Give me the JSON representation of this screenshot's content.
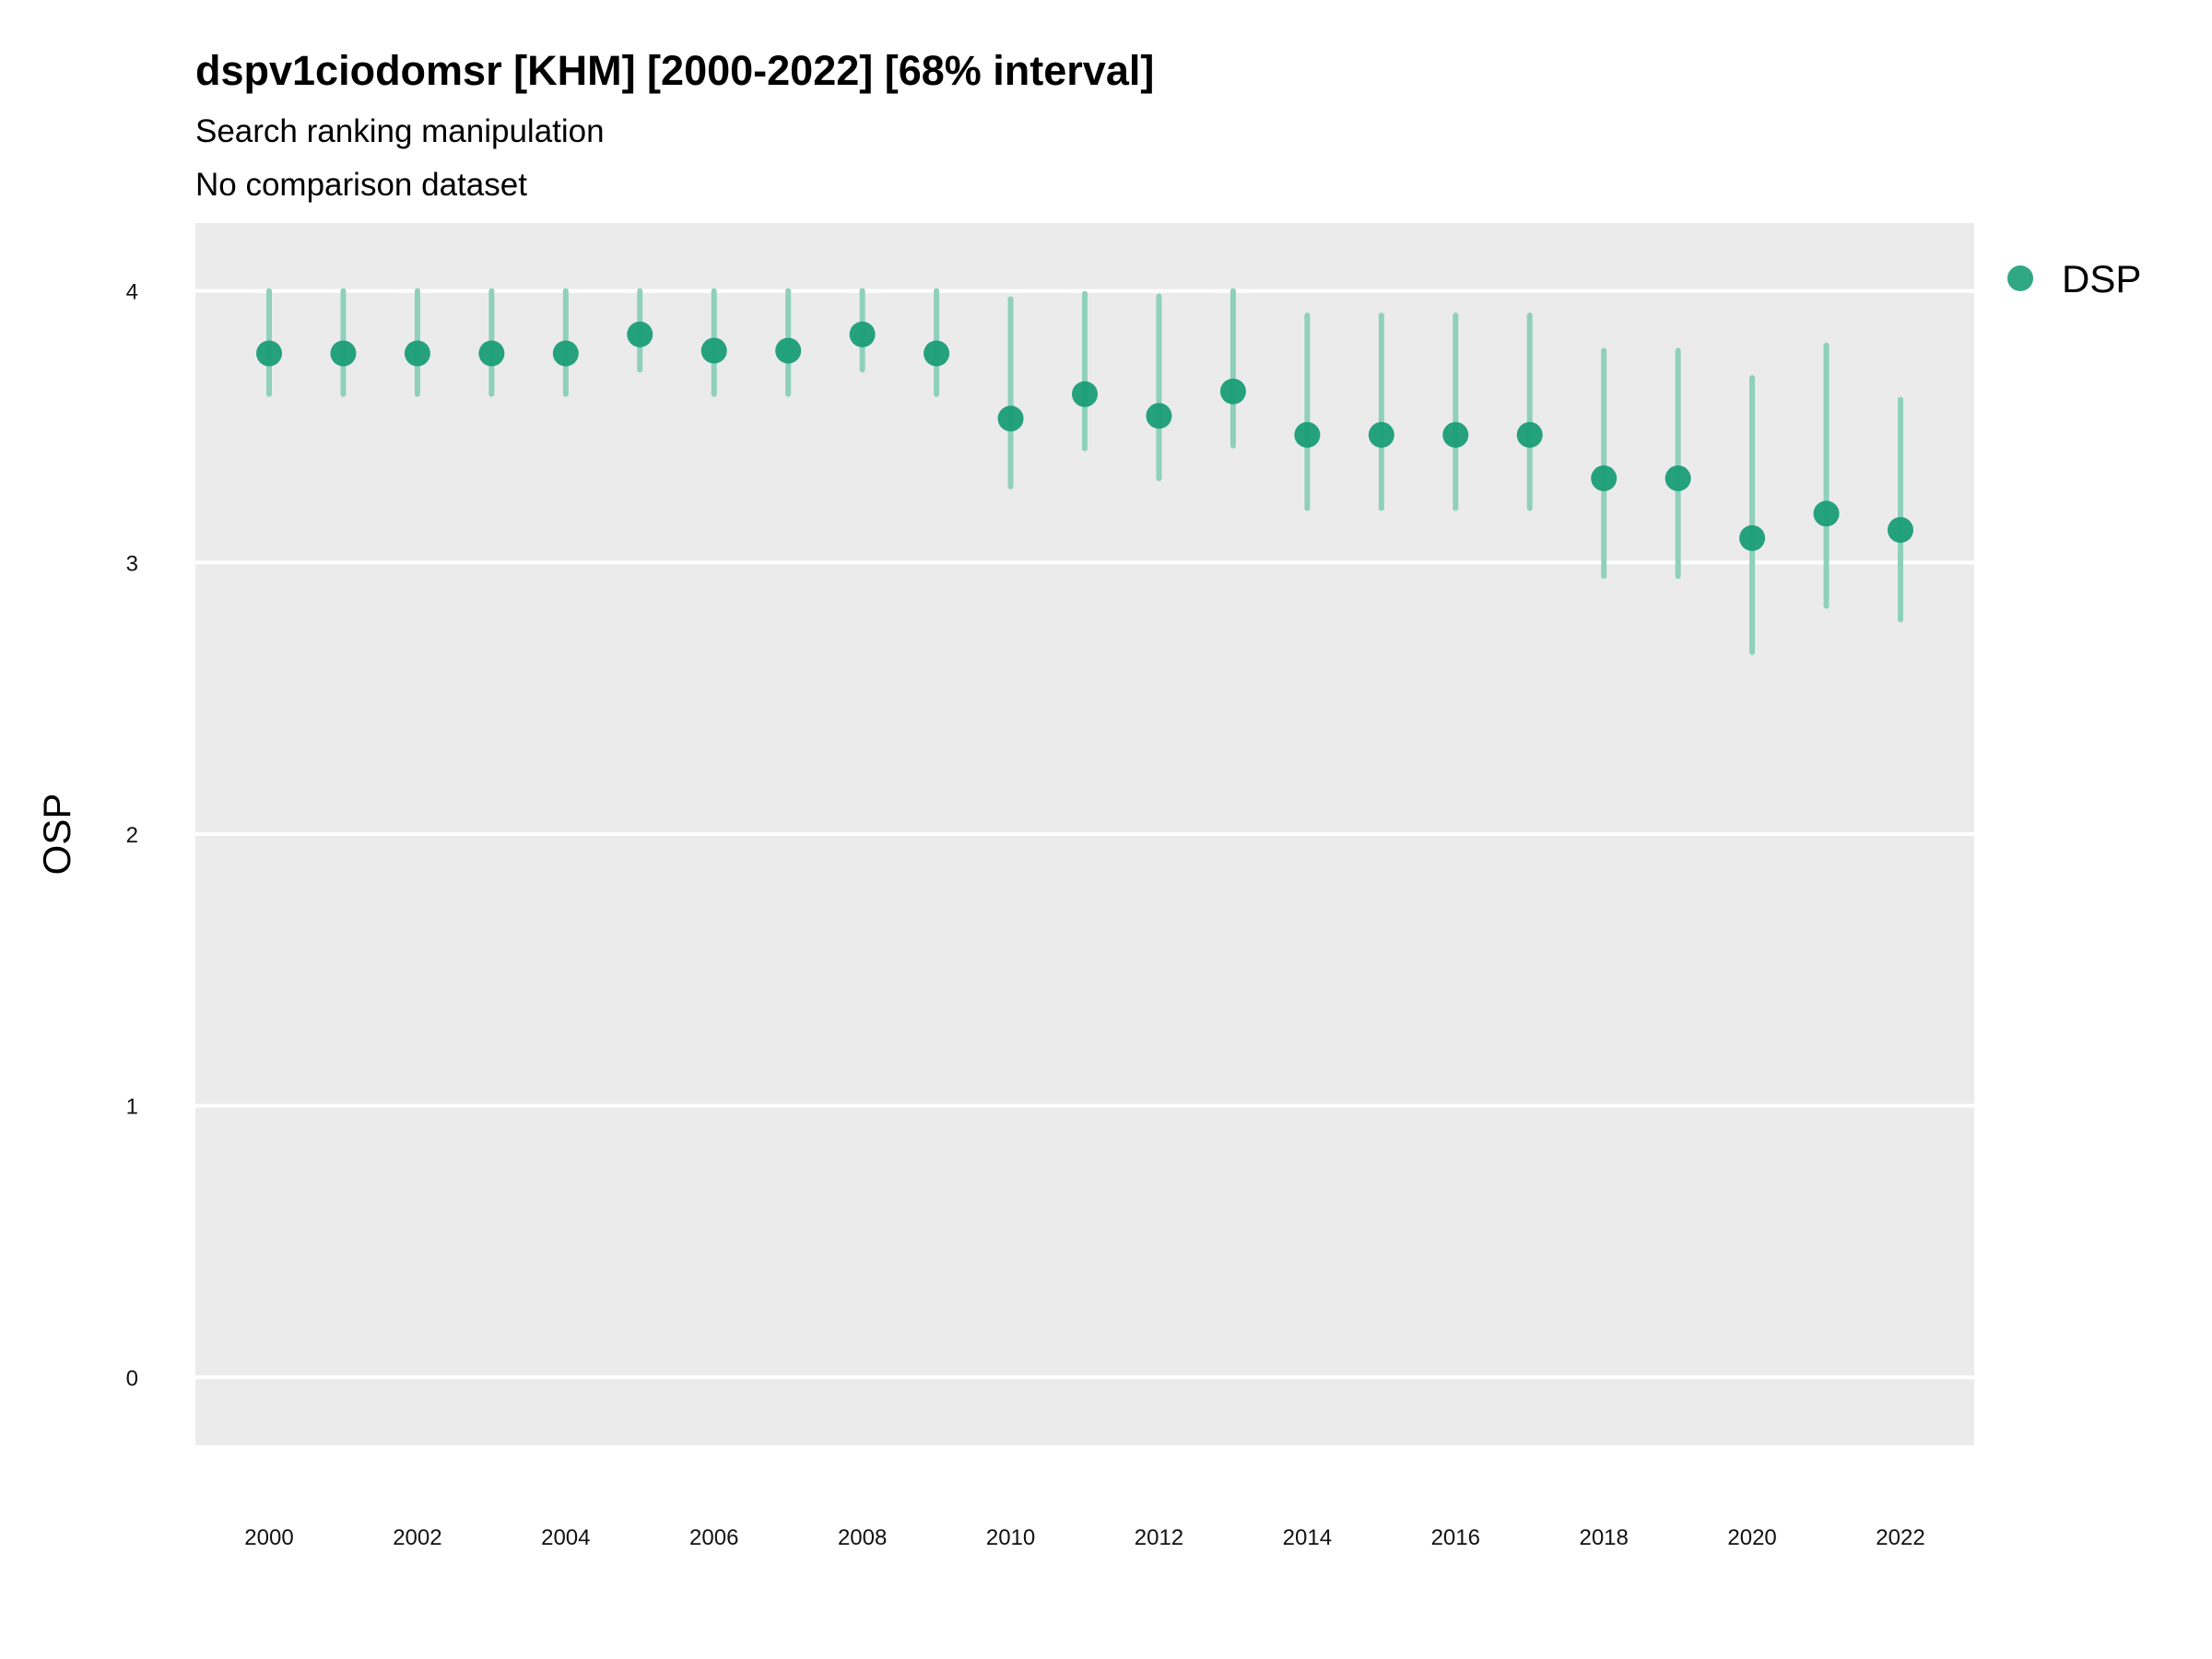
{
  "chart_data": {
    "type": "scatter",
    "title": "dspv1ciodomsr [KHM] [2000-2022] [68% interval]",
    "subtitle_lines": [
      "Search ranking manipulation",
      "No comparison dataset"
    ],
    "xlabel": "",
    "ylabel": "OSP",
    "ylim": [
      -0.25,
      4.25
    ],
    "y_ticks": [
      "0",
      "1",
      "2",
      "3",
      "4"
    ],
    "x_ticks": [
      "2000",
      "2002",
      "2004",
      "2006",
      "2008",
      "2010",
      "2012",
      "2014",
      "2016",
      "2018",
      "2020",
      "2022"
    ],
    "grid": true,
    "legend_position": "right",
    "colors": {
      "point": "#1a9e77",
      "interval": "#8fd0bb",
      "panel": "#ebebeb",
      "grid": "#ffffff"
    },
    "series": [
      {
        "name": "DSP",
        "points": [
          {
            "x": 2000,
            "y": 3.77,
            "low": 3.62,
            "high": 4.0
          },
          {
            "x": 2001,
            "y": 3.77,
            "low": 3.62,
            "high": 4.0
          },
          {
            "x": 2002,
            "y": 3.77,
            "low": 3.62,
            "high": 4.0
          },
          {
            "x": 2003,
            "y": 3.77,
            "low": 3.62,
            "high": 4.0
          },
          {
            "x": 2004,
            "y": 3.77,
            "low": 3.62,
            "high": 4.0
          },
          {
            "x": 2005,
            "y": 3.84,
            "low": 3.71,
            "high": 4.0
          },
          {
            "x": 2006,
            "y": 3.78,
            "low": 3.62,
            "high": 4.0
          },
          {
            "x": 2007,
            "y": 3.78,
            "low": 3.62,
            "high": 4.0
          },
          {
            "x": 2008,
            "y": 3.84,
            "low": 3.71,
            "high": 4.0
          },
          {
            "x": 2009,
            "y": 3.77,
            "low": 3.62,
            "high": 4.0
          },
          {
            "x": 2010,
            "y": 3.53,
            "low": 3.28,
            "high": 3.97
          },
          {
            "x": 2011,
            "y": 3.62,
            "low": 3.42,
            "high": 3.99
          },
          {
            "x": 2012,
            "y": 3.54,
            "low": 3.31,
            "high": 3.98
          },
          {
            "x": 2013,
            "y": 3.63,
            "low": 3.43,
            "high": 4.0
          },
          {
            "x": 2014,
            "y": 3.47,
            "low": 3.2,
            "high": 3.91
          },
          {
            "x": 2015,
            "y": 3.47,
            "low": 3.2,
            "high": 3.91
          },
          {
            "x": 2016,
            "y": 3.47,
            "low": 3.2,
            "high": 3.91
          },
          {
            "x": 2017,
            "y": 3.47,
            "low": 3.2,
            "high": 3.91
          },
          {
            "x": 2018,
            "y": 3.31,
            "low": 2.95,
            "high": 3.78
          },
          {
            "x": 2019,
            "y": 3.31,
            "low": 2.95,
            "high": 3.78
          },
          {
            "x": 2020,
            "y": 3.09,
            "low": 2.67,
            "high": 3.68
          },
          {
            "x": 2021,
            "y": 3.18,
            "low": 2.84,
            "high": 3.8
          },
          {
            "x": 2022,
            "y": 3.12,
            "low": 2.79,
            "high": 3.6
          }
        ]
      }
    ]
  }
}
